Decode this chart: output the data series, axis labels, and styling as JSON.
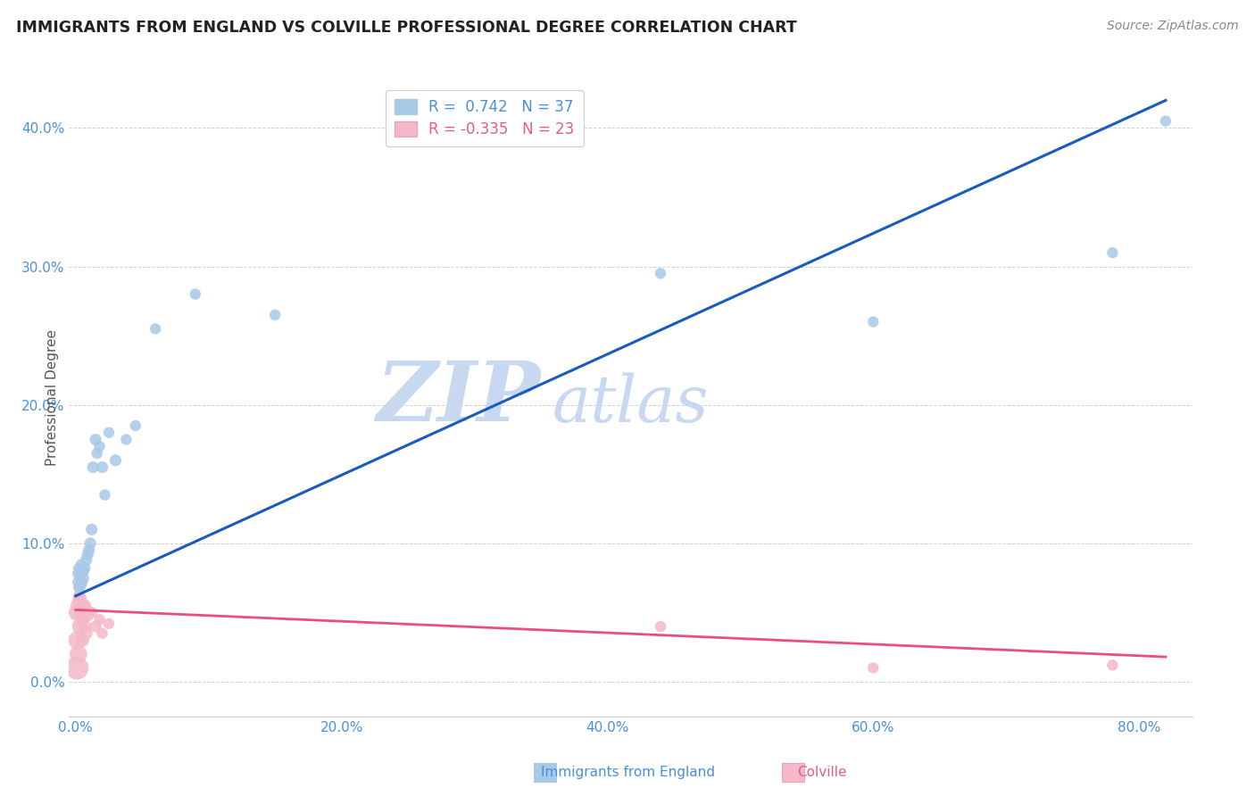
{
  "title": "IMMIGRANTS FROM ENGLAND VS COLVILLE PROFESSIONAL DEGREE CORRELATION CHART",
  "source": "Source: ZipAtlas.com",
  "ylabel": "Professional Degree",
  "legend_england_R": "R =  0.742",
  "legend_england_N": "N = 37",
  "legend_colville_R": "R = -0.335",
  "legend_colville_N": "N = 23",
  "blue_color": "#a8c8e8",
  "blue_line_color": "#1a5bbf",
  "pink_color": "#f5b8c8",
  "pink_line_color": "#e8507a",
  "watermark_zip_color": "#c8d8f0",
  "watermark_atlas_color": "#c8d8f0",
  "xlim": [
    -0.005,
    0.84
  ],
  "ylim": [
    -0.025,
    0.435
  ],
  "xlabel_tick_vals": [
    0.0,
    0.2,
    0.4,
    0.6,
    0.8
  ],
  "ylabel_tick_vals": [
    0.0,
    0.1,
    0.2,
    0.3,
    0.4
  ],
  "england_x": [
    0.001,
    0.001,
    0.002,
    0.002,
    0.002,
    0.003,
    0.003,
    0.003,
    0.004,
    0.004,
    0.005,
    0.005,
    0.006,
    0.006,
    0.007,
    0.008,
    0.009,
    0.01,
    0.011,
    0.012,
    0.013,
    0.015,
    0.016,
    0.018,
    0.02,
    0.022,
    0.025,
    0.03,
    0.038,
    0.045,
    0.06,
    0.09,
    0.15,
    0.44,
    0.6,
    0.78,
    0.82
  ],
  "england_y": [
    0.078,
    0.072,
    0.068,
    0.062,
    0.082,
    0.068,
    0.075,
    0.08,
    0.07,
    0.085,
    0.072,
    0.078,
    0.075,
    0.08,
    0.082,
    0.088,
    0.092,
    0.095,
    0.1,
    0.11,
    0.155,
    0.175,
    0.165,
    0.17,
    0.155,
    0.135,
    0.18,
    0.16,
    0.175,
    0.185,
    0.255,
    0.28,
    0.265,
    0.295,
    0.26,
    0.31,
    0.405
  ],
  "england_sizes": [
    60,
    60,
    70,
    70,
    70,
    80,
    70,
    70,
    80,
    70,
    80,
    70,
    80,
    80,
    80,
    90,
    90,
    90,
    90,
    90,
    90,
    90,
    80,
    80,
    90,
    80,
    80,
    90,
    80,
    80,
    80,
    80,
    80,
    80,
    80,
    80,
    80
  ],
  "colville_x": [
    0.001,
    0.001,
    0.001,
    0.002,
    0.002,
    0.003,
    0.003,
    0.004,
    0.005,
    0.005,
    0.006,
    0.007,
    0.007,
    0.008,
    0.009,
    0.012,
    0.015,
    0.018,
    0.02,
    0.025,
    0.44,
    0.6,
    0.78
  ],
  "colville_y": [
    0.01,
    0.03,
    0.05,
    0.02,
    0.055,
    0.04,
    0.06,
    0.05,
    0.03,
    0.045,
    0.055,
    0.04,
    0.055,
    0.035,
    0.048,
    0.05,
    0.04,
    0.045,
    0.035,
    0.042,
    0.04,
    0.01,
    0.012
  ],
  "colville_sizes": [
    350,
    200,
    180,
    200,
    160,
    150,
    130,
    120,
    120,
    110,
    110,
    110,
    100,
    100,
    100,
    90,
    90,
    80,
    80,
    80,
    80,
    80,
    80
  ],
  "england_line_x": [
    0.0,
    0.82
  ],
  "england_line_y": [
    0.062,
    0.42
  ],
  "colville_line_x": [
    0.0,
    0.82
  ],
  "colville_line_y": [
    0.052,
    0.018
  ]
}
